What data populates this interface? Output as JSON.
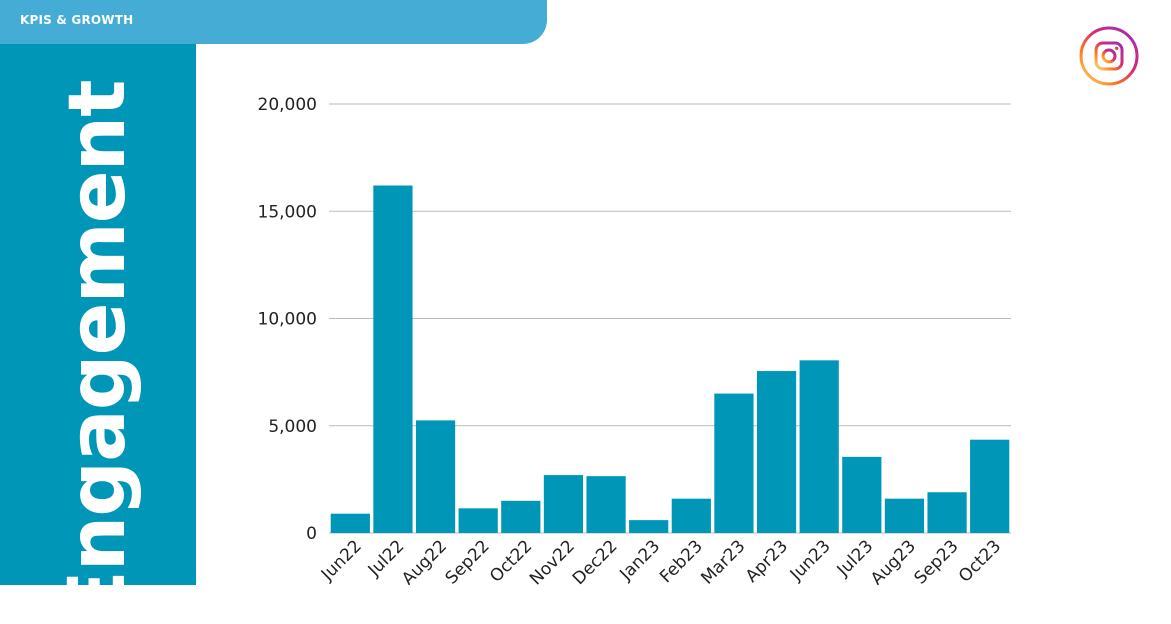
{
  "header": {
    "section_label": "KPIS & GROWTH"
  },
  "sidebar": {
    "title": "Engagement"
  },
  "icons": {
    "brand": "instagram-icon"
  },
  "colors": {
    "bar": "#0096b8",
    "panel": "#0096b8",
    "tab": "#44acd5",
    "grid": "#bbbbbb"
  },
  "chart_data": {
    "type": "bar",
    "categories": [
      "Jun22",
      "Jul22",
      "Aug22",
      "Sep22",
      "Oct22",
      "Nov22",
      "Dec22",
      "Jan23",
      "Feb23",
      "Mar23",
      "Apr23",
      "Jun23",
      "Jul23",
      "Aug23",
      "Sep23",
      "Oct23"
    ],
    "values": [
      900,
      16200,
      5250,
      1150,
      1500,
      2700,
      2650,
      600,
      1600,
      6500,
      7550,
      8050,
      3550,
      1600,
      1900,
      4350
    ],
    "ylim": [
      0,
      20000
    ],
    "yticks": [
      0,
      5000,
      10000,
      15000,
      20000
    ],
    "ytick_labels": [
      "0",
      "5,000",
      "10,000",
      "15,000",
      "20,000"
    ],
    "grid": true,
    "title": "",
    "xlabel": "",
    "ylabel": ""
  }
}
